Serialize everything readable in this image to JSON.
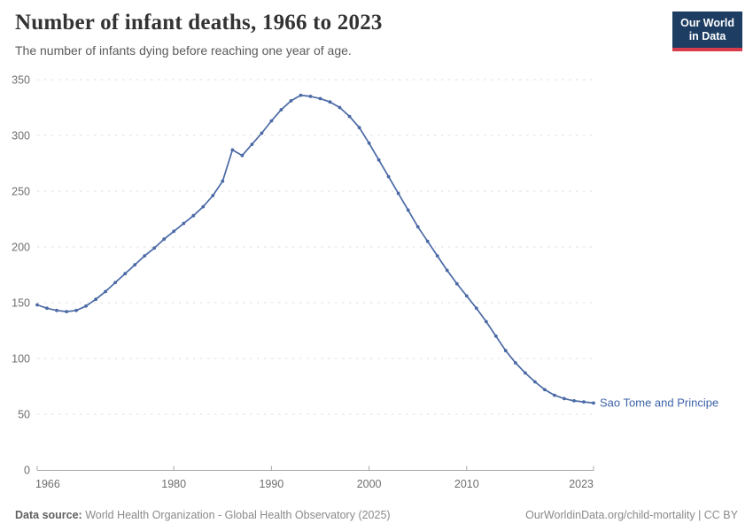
{
  "header": {
    "title": "Number of infant deaths, 1966 to 2023",
    "subtitle": "The number of infants dying before reaching one year of age.",
    "logo": {
      "line1": "Our World",
      "line2": "in Data"
    }
  },
  "chart_data": {
    "type": "line",
    "title": "Number of infant deaths, 1966 to 2023",
    "xlabel": "",
    "ylabel": "",
    "ylim": [
      0,
      350
    ],
    "yticks": [
      0,
      50,
      100,
      150,
      200,
      250,
      300,
      350
    ],
    "xticks": [
      1966,
      1980,
      1990,
      2000,
      2010,
      2023
    ],
    "grid": "horizontal-dashed",
    "legend": "end-of-line-label",
    "x": [
      1966,
      1967,
      1968,
      1969,
      1970,
      1971,
      1972,
      1973,
      1974,
      1975,
      1976,
      1977,
      1978,
      1979,
      1980,
      1981,
      1982,
      1983,
      1984,
      1985,
      1986,
      1987,
      1988,
      1989,
      1990,
      1991,
      1992,
      1993,
      1994,
      1995,
      1996,
      1997,
      1998,
      1999,
      2000,
      2001,
      2002,
      2003,
      2004,
      2005,
      2006,
      2007,
      2008,
      2009,
      2010,
      2011,
      2012,
      2013,
      2014,
      2015,
      2016,
      2017,
      2018,
      2019,
      2020,
      2021,
      2022,
      2023
    ],
    "series": [
      {
        "name": "Sao Tome and Principe",
        "color": "#4a69a5",
        "values": [
          148,
          145,
          143,
          142,
          143,
          147,
          153,
          160,
          168,
          176,
          184,
          192,
          199,
          207,
          214,
          221,
          228,
          236,
          246,
          259,
          287,
          282,
          292,
          302,
          313,
          323,
          331,
          336,
          335,
          333,
          330,
          325,
          317,
          307,
          293,
          278,
          263,
          248,
          233,
          218,
          205,
          192,
          179,
          167,
          156,
          145,
          133,
          120,
          107,
          96,
          87,
          79,
          72,
          67,
          64,
          62,
          61,
          60
        ]
      }
    ]
  },
  "footer": {
    "datasource_label": "Data source:",
    "datasource_text": " World Health Organization - Global Health Observatory (2025)",
    "link_text": "OurWorldinData.org/child-mortality | CC BY"
  },
  "colors": {
    "line": "#4a69a5",
    "entity_label": "#3d63a8",
    "grid": "#dedede",
    "axis": "#a8a8a8",
    "tick_label": "#6e6e6e",
    "title": "#333333",
    "subtitle": "#5a5a5a",
    "footer": "#8a8a8a",
    "logo_bg": "#1d3d63",
    "logo_red": "#d73c4c"
  }
}
